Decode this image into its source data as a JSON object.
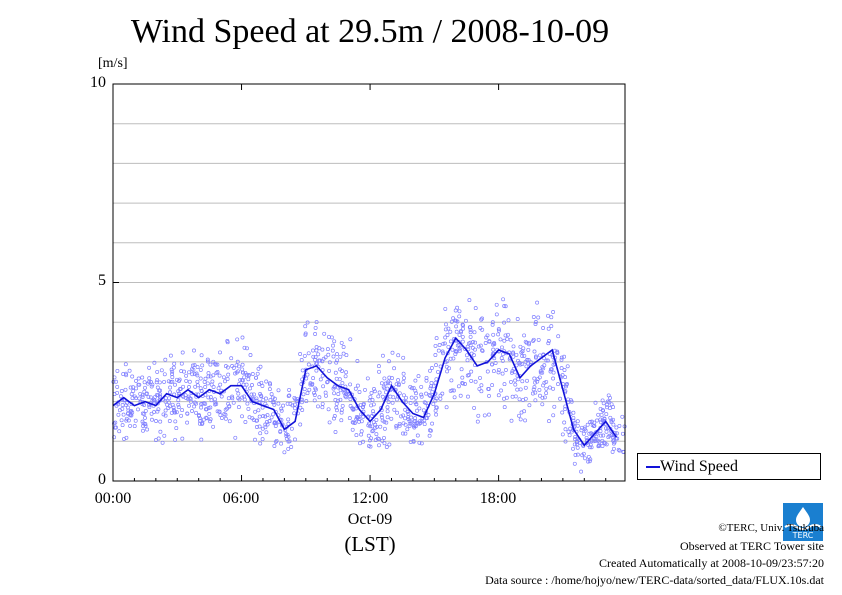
{
  "page_title": "Wind Speed at 29.5m / 2008-10-09",
  "unit_label": "[m/s]",
  "x_date_label": "Oct-09",
  "x_timezone_label": "(LST)",
  "legend_label": "Wind Speed",
  "credits": {
    "copyright": "©TERC, Univ. Tsukuba",
    "observed": "Observed at TERC Tower site",
    "created": "Created Automatically at 2008-10-09/23:57:20",
    "source": "Data source : /home/hojyo/new/TERC-data/sorted_data/FLUX.10s.dat"
  },
  "logo_text": "TERC",
  "colors": {
    "line": "#1212d8",
    "points": "#8080ff",
    "grid": "#bdbdbd",
    "logo": "#1a7fd0"
  },
  "chart_data": {
    "type": "line",
    "title": "Wind Speed at 29.5m / 2008-10-09",
    "ylabel": "[m/s]",
    "xlabel": "(LST)",
    "ylim": [
      0,
      10
    ],
    "xlim": [
      0,
      23.9
    ],
    "yticks": [
      0,
      5,
      10
    ],
    "ytick_labels": [
      "0",
      "5",
      "10"
    ],
    "xticks": [
      0,
      6,
      12,
      18
    ],
    "xtick_labels": [
      "00:00",
      "06:00",
      "12:00",
      "18:00"
    ],
    "grid": "horizontal every 1 m/s",
    "legend_position": "right, bottom",
    "series": [
      {
        "name": "Wind Speed",
        "style": "line with scattered raw points",
        "x": [
          0,
          0.5,
          1,
          1.5,
          2,
          2.5,
          3,
          3.5,
          4,
          4.5,
          5,
          5.5,
          6,
          6.5,
          7,
          7.5,
          8,
          8.5,
          9,
          9.5,
          10,
          10.5,
          11,
          11.5,
          12,
          12.5,
          13,
          13.5,
          14,
          14.5,
          15,
          15.5,
          16,
          16.5,
          17,
          17.5,
          18,
          18.5,
          19,
          19.5,
          20,
          20.5,
          21,
          21.5,
          22,
          22.5,
          23,
          23.5
        ],
        "values": [
          1.9,
          2.1,
          1.9,
          2.0,
          1.9,
          2.2,
          2.1,
          2.3,
          2.1,
          2.3,
          2.2,
          2.4,
          2.4,
          2.0,
          1.9,
          1.8,
          1.3,
          1.5,
          2.8,
          2.9,
          2.6,
          2.4,
          2.3,
          1.8,
          1.5,
          1.8,
          2.4,
          2.0,
          1.7,
          1.6,
          2.2,
          3.1,
          3.6,
          3.3,
          2.9,
          3.0,
          3.3,
          3.2,
          2.6,
          2.9,
          3.1,
          3.3,
          2.3,
          1.3,
          0.9,
          1.2,
          1.5,
          1.1
        ]
      }
    ]
  }
}
